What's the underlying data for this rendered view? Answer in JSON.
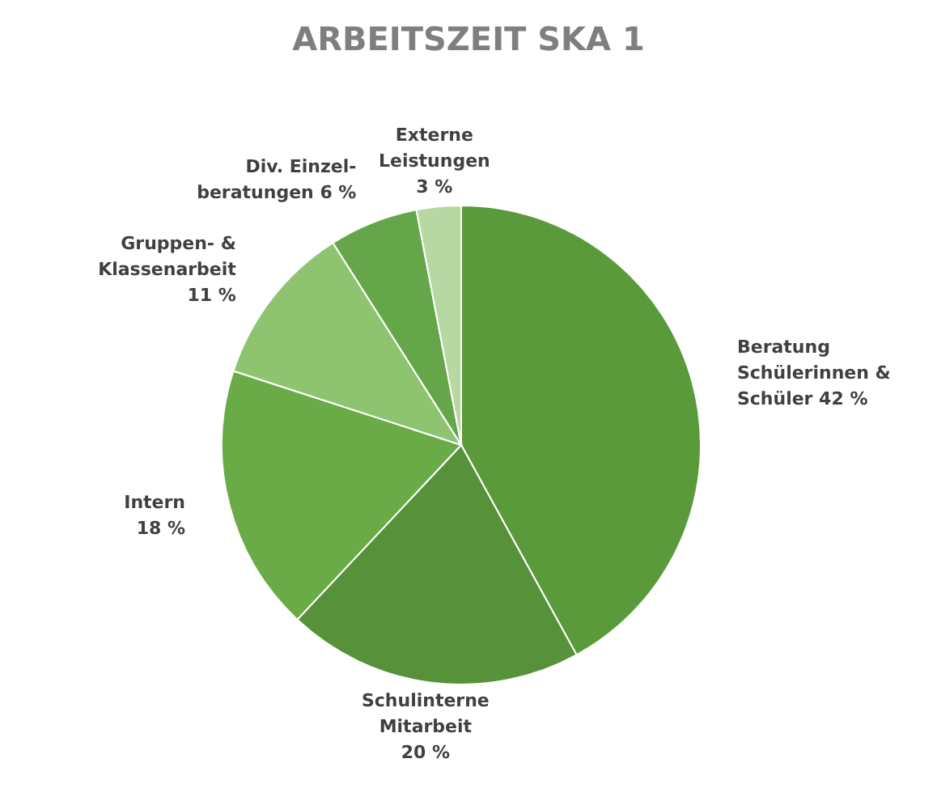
{
  "chart_data": {
    "type": "pie",
    "title": "ARBEITSZEIT SKA 1",
    "categories": [
      "Beratung\nSchülerinnen &\nSchüler",
      "Schulinterne\nMitarbeit",
      "Intern",
      "Gruppen- &\nKlassenarbeit",
      "Div. Einzel-\nberatungen",
      "Externe\nLeistungen"
    ],
    "values": [
      42,
      20,
      18,
      11,
      6,
      3
    ],
    "value_labels": [
      "42 %",
      "20 %",
      "18 %",
      "11 %",
      "6 %",
      "3 %"
    ],
    "colors": [
      "#5b9a3a",
      "#57923a",
      "#6aaa47",
      "#8ec46f",
      "#66a64a",
      "#b7d8a3"
    ],
    "legend": false
  }
}
